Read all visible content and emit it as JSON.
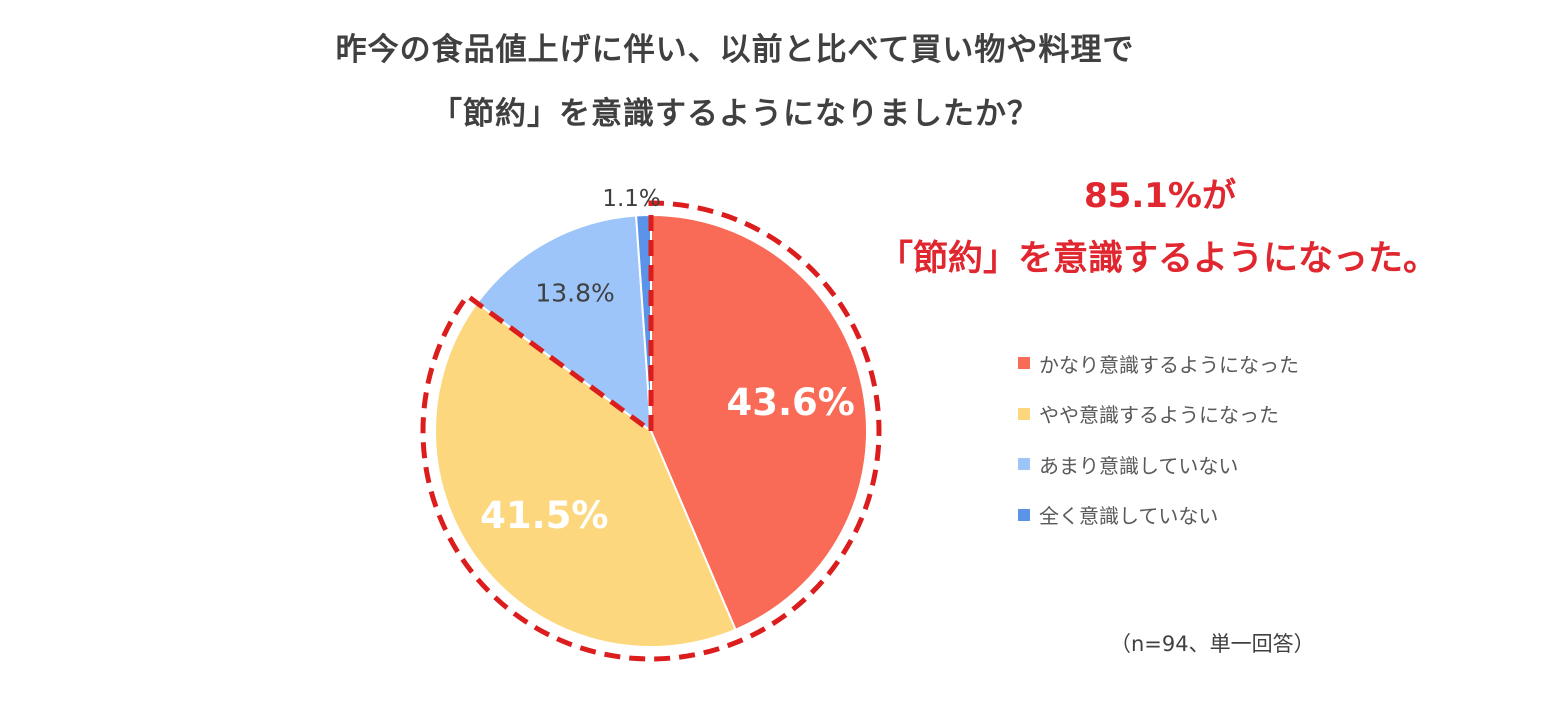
{
  "title": {
    "line1": "昨今の食品値上げに伴い、以前と比べて買い物や料理で",
    "line2": "「節約」を意識するようになりましたか？"
  },
  "highlight": {
    "line1": "85.1%が",
    "line2": "「節約」を意識するようになった。",
    "color": "#e0262e"
  },
  "chart_data": {
    "type": "pie",
    "slices": [
      {
        "label": "かなり意識するようになった",
        "value": 43.6,
        "display": "43.6%",
        "color": "#f96a57"
      },
      {
        "label": "やや意識するようになった",
        "value": 41.5,
        "display": "41.5%",
        "color": "#fcd77d"
      },
      {
        "label": "あまり意識していない",
        "value": 13.8,
        "display": "13.8%",
        "color": "#9dc5fa"
      },
      {
        "label": "全く意識していない",
        "value": 1.1,
        "display": "1.1%",
        "color": "#5b93e8"
      }
    ],
    "start_angle_deg": 0,
    "direction": "clockwise",
    "legend_position": "right",
    "highlighted_slices": [
      "かなり意識するようになった",
      "やや意識するようになった"
    ],
    "highlight_outline": "red dashed"
  },
  "footnote": "（n=94、単一回答）"
}
